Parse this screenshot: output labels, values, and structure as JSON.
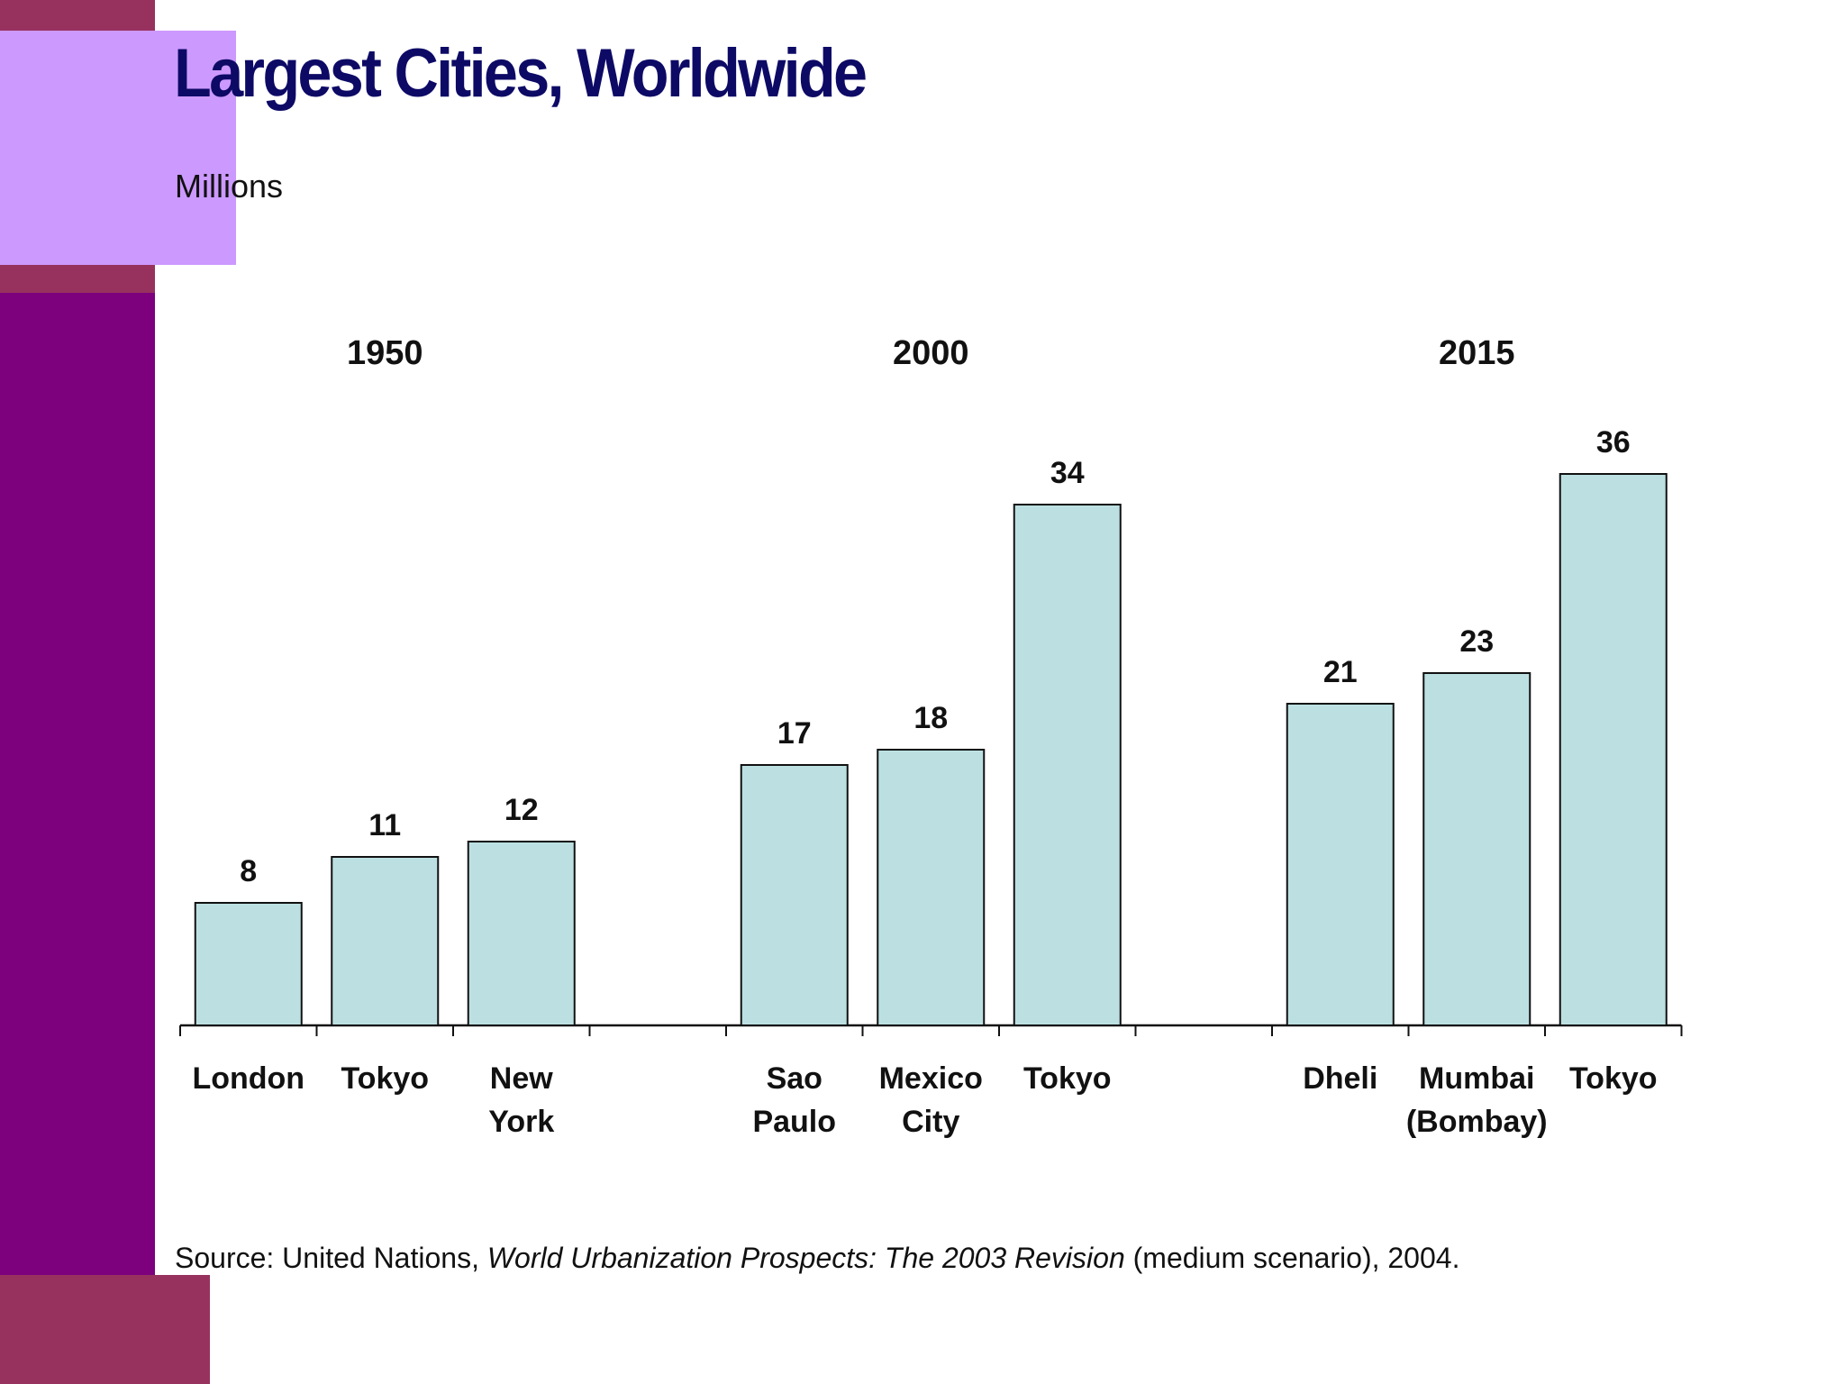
{
  "colors": {
    "deco_dark": "#97325f",
    "deco_purple": "#7d007d",
    "deco_light": "#cc99ff",
    "title": "#0d0a66",
    "bar_fill": "#bce0e2",
    "bar_stroke": "#111111"
  },
  "chart_data": {
    "type": "bar",
    "title": "Largest Cities, Worldwide",
    "ylabel": "Millions",
    "ylim": [
      0,
      40
    ],
    "grid": false,
    "groups": [
      {
        "name": "1950",
        "bars": [
          {
            "label": [
              "London"
            ],
            "value": 8
          },
          {
            "label": [
              "Tokyo"
            ],
            "value": 11
          },
          {
            "label": [
              "New",
              "York"
            ],
            "value": 12
          }
        ]
      },
      {
        "name": "2000",
        "bars": [
          {
            "label": [
              "Sao",
              "Paulo"
            ],
            "value": 17
          },
          {
            "label": [
              "Mexico",
              "City"
            ],
            "value": 18
          },
          {
            "label": [
              "Tokyo"
            ],
            "value": 34
          }
        ]
      },
      {
        "name": "2015",
        "bars": [
          {
            "label": [
              "Dheli"
            ],
            "value": 21
          },
          {
            "label": [
              "Mumbai",
              "(Bombay)"
            ],
            "value": 23
          },
          {
            "label": [
              "Tokyo"
            ],
            "value": 36
          }
        ]
      }
    ]
  },
  "source": {
    "prefix": "Source: United Nations, ",
    "italic": "World Urbanization Prospects: The 2003 Revision",
    "suffix": " (medium scenario), 2004."
  }
}
